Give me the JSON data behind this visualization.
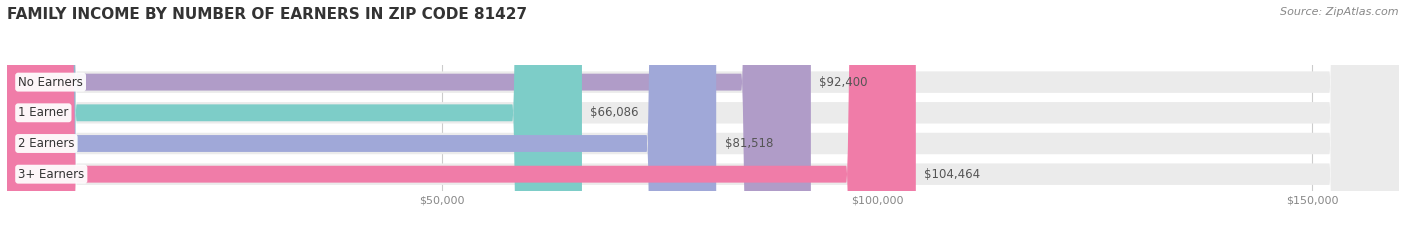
{
  "title": "FAMILY INCOME BY NUMBER OF EARNERS IN ZIP CODE 81427",
  "source": "Source: ZipAtlas.com",
  "categories": [
    "No Earners",
    "1 Earner",
    "2 Earners",
    "3+ Earners"
  ],
  "values": [
    92400,
    66086,
    81518,
    104464
  ],
  "bar_colors": [
    "#b09cc8",
    "#7dcdc8",
    "#a0a8d8",
    "#f07ca8"
  ],
  "value_labels": [
    "$92,400",
    "$66,086",
    "$81,518",
    "$104,464"
  ],
  "xlim_min": 0,
  "xlim_max": 160000,
  "xticks": [
    50000,
    100000,
    150000
  ],
  "xtick_labels": [
    "$50,000",
    "$100,000",
    "$150,000"
  ],
  "background_color": "#ffffff",
  "title_fontsize": 11,
  "label_fontsize": 8.5,
  "tick_fontsize": 8,
  "source_fontsize": 8
}
